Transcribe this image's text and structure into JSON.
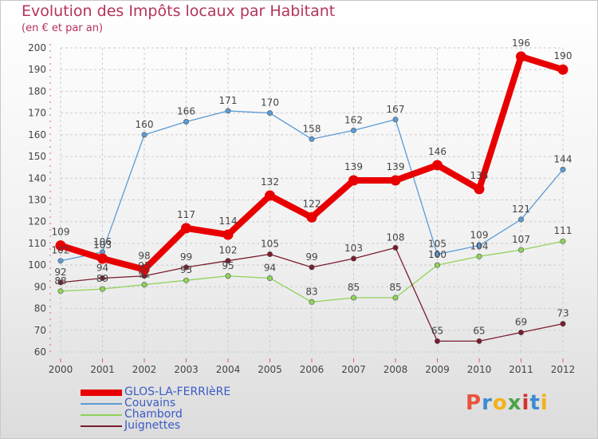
{
  "header": {
    "title": "Evolution des Impôts locaux par Habitant",
    "subtitle": "(en € et par an)"
  },
  "logo": {
    "text": "Proxiti",
    "letter_colors": [
      "#e8543b",
      "#3d8bd0",
      "#f2b21a",
      "#4aa44a",
      "#d6312e",
      "#3d8bd0",
      "#f2b21a"
    ]
  },
  "colors": {
    "title": "#b4345a",
    "axis_tick_mark": "#d85a7a",
    "grid": "#cccccc",
    "legend_text": "#3b5bc4"
  },
  "chart_data": {
    "type": "line",
    "title": "Evolution des Impôts locaux par Habitant",
    "subtitle": "(en € et par an)",
    "xlabel": "",
    "ylabel": "",
    "ylim": [
      60,
      200
    ],
    "yticks": [
      60,
      70,
      80,
      90,
      100,
      110,
      120,
      130,
      140,
      150,
      160,
      170,
      180,
      190,
      200
    ],
    "grid": true,
    "legend_position": "bottom-left",
    "categories": [
      "2000",
      "2001",
      "2002",
      "2003",
      "2004",
      "2005",
      "2006",
      "2007",
      "2008",
      "2009",
      "2010",
      "2011",
      "2012"
    ],
    "series": [
      {
        "name": "GLOS-LA-FERRIèRE",
        "color": "#e80000",
        "thick": true,
        "values": [
          109,
          103,
          98,
          117,
          114,
          132,
          122,
          139,
          139,
          146,
          135,
          196,
          190
        ]
      },
      {
        "name": "Couvains",
        "color": "#5b9bd5",
        "thick": false,
        "values": [
          102,
          106,
          160,
          166,
          171,
          170,
          158,
          162,
          167,
          105,
          109,
          121,
          144
        ]
      },
      {
        "name": "Chambord",
        "color": "#8fd35a",
        "thick": false,
        "values": [
          88,
          89,
          91,
          93,
          95,
          94,
          83,
          85,
          85,
          100,
          104,
          107,
          111
        ]
      },
      {
        "name": "Juignettes",
        "color": "#7a1c2c",
        "thick": false,
        "values": [
          92,
          94,
          95,
          99,
          102,
          105,
          99,
          103,
          108,
          65,
          65,
          69,
          73
        ]
      }
    ]
  }
}
